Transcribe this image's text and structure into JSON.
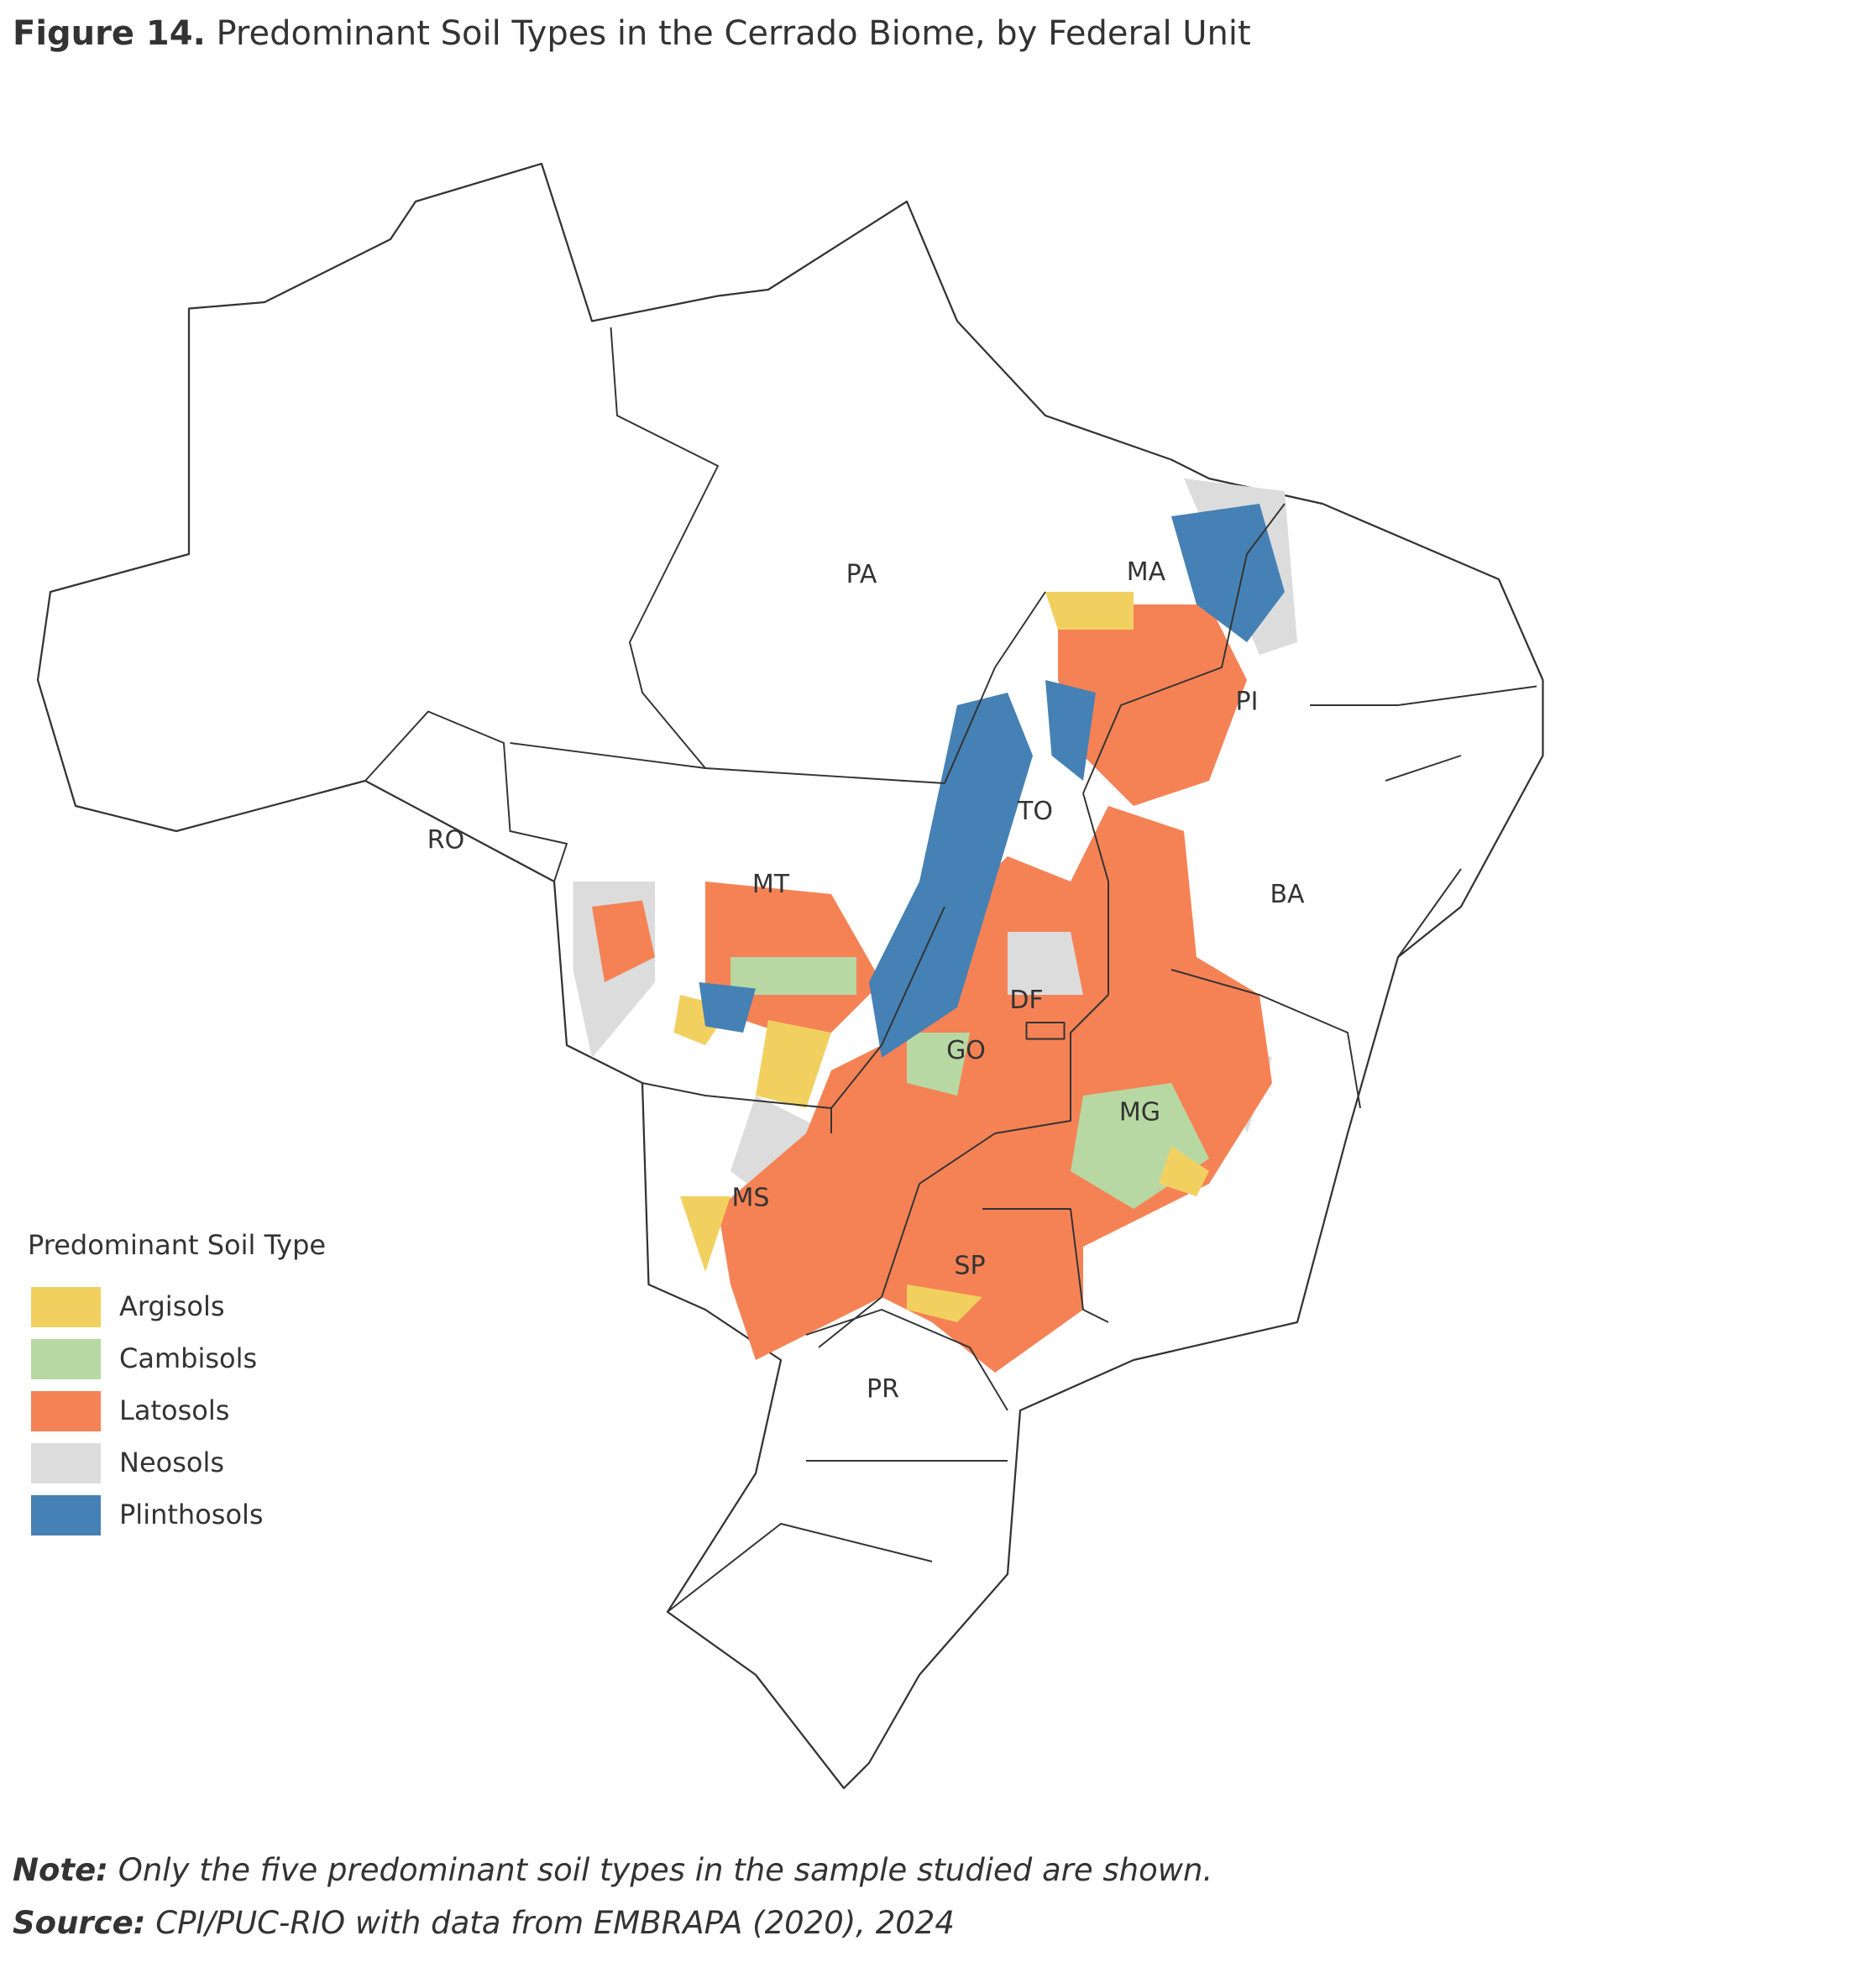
{
  "title": {
    "label": "Figure 14.",
    "text": "Predominant Soil Types in the Cerrado Biome, by Federal Unit"
  },
  "states": [
    "PA",
    "MA",
    "PI",
    "TO",
    "RO",
    "MT",
    "BA",
    "DF",
    "GO",
    "MG",
    "MS",
    "SP",
    "PR"
  ],
  "legend": {
    "title": "Predominant Soil Type",
    "items": [
      {
        "label": "Argisols",
        "color": "#f2d060"
      },
      {
        "label": "Cambisols",
        "color": "#b8d8a3"
      },
      {
        "label": "Latosols",
        "color": "#f58255"
      },
      {
        "label": "Neosols",
        "color": "#dcdcdd"
      },
      {
        "label": "Plinthosols",
        "color": "#4581b4"
      }
    ]
  },
  "note": {
    "label": "Note:",
    "text": "Only the five predominant soil types in the sample studied are shown."
  },
  "source": {
    "label": "Source:",
    "text": "CPI/PUC-RIO with data from EMBRAPA (2020), 2024"
  }
}
